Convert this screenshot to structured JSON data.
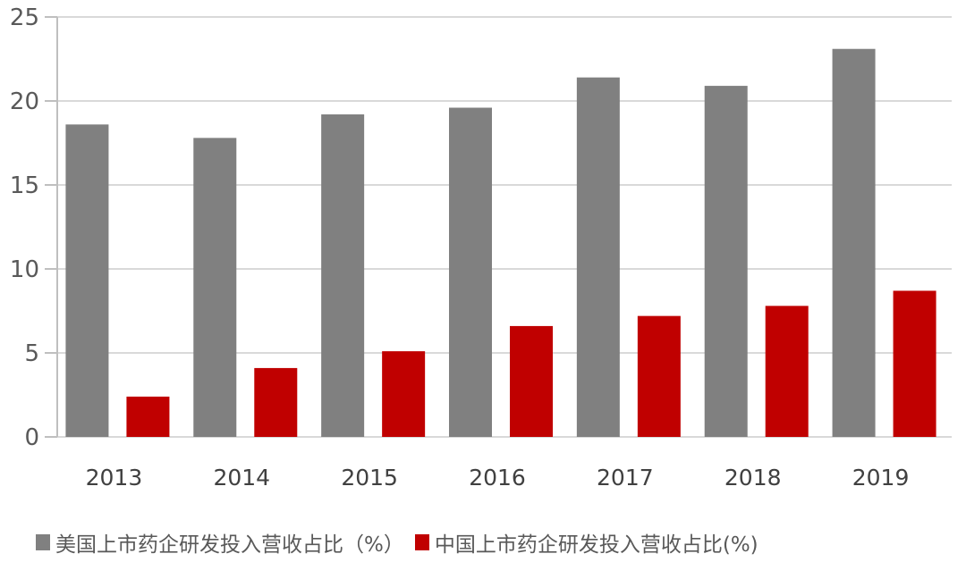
{
  "chart_data": {
    "type": "bar",
    "title": "",
    "xlabel": "",
    "ylabel": "",
    "categories": [
      "2013",
      "2014",
      "2015",
      "2016",
      "2017",
      "2018",
      "2019"
    ],
    "series": [
      {
        "name": "美国上市药企研发投入营收占比（%）",
        "color": "#808080",
        "values": [
          18.6,
          17.8,
          19.2,
          19.6,
          21.4,
          20.9,
          23.1
        ]
      },
      {
        "name": "中国上市药企研发投入营收占比(%)",
        "color": "#C00000",
        "values": [
          2.4,
          4.1,
          5.1,
          6.6,
          7.2,
          7.8,
          8.7
        ]
      }
    ],
    "ylim": [
      0,
      25
    ],
    "yticks": [
      "0",
      "5",
      "10",
      "15",
      "20",
      "25"
    ],
    "grid": true,
    "legend_position": "bottom"
  },
  "legend": {
    "us_label": "美国上市药企研发投入营收占比（%）",
    "cn_label": "中国上市药企研发投入营收占比(%)"
  }
}
